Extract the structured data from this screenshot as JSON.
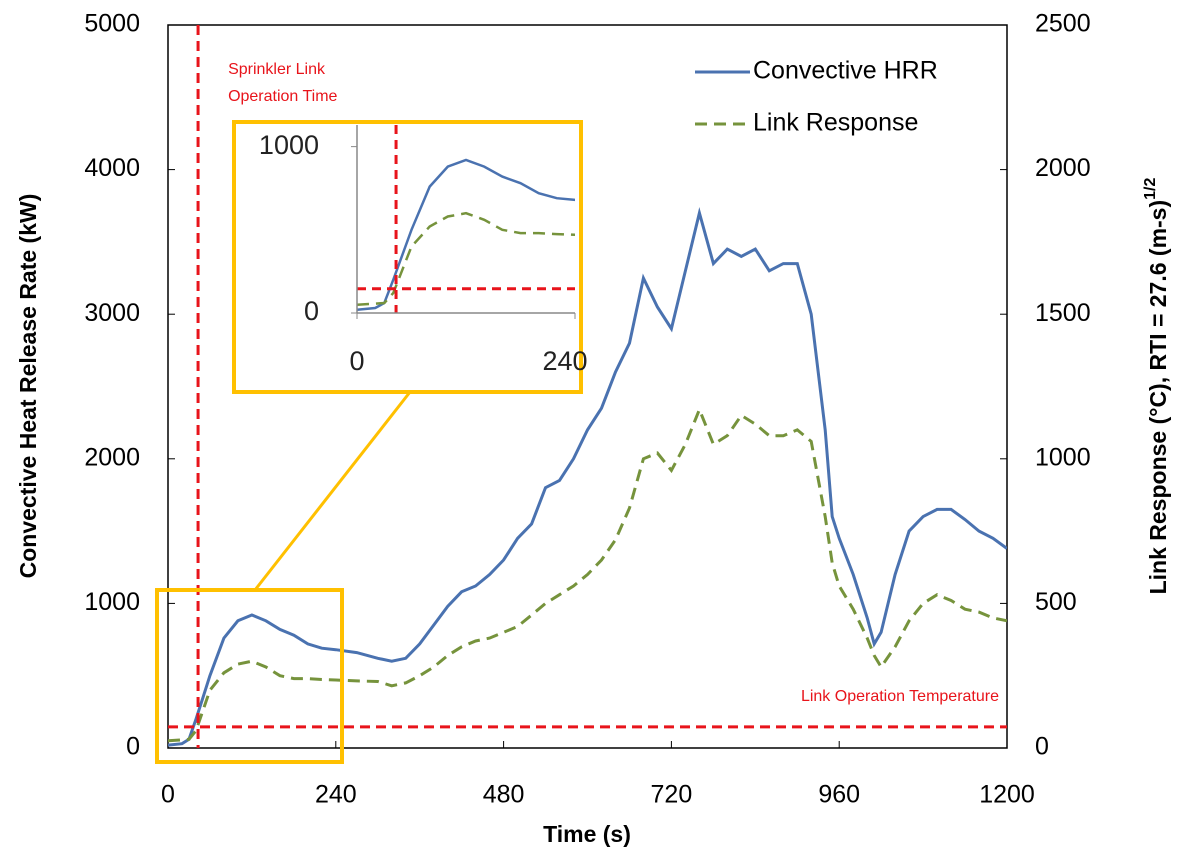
{
  "chart_data": {
    "type": "line",
    "xlabel": "Time (s)",
    "ylabel": "Convective Heat Release Rate (kW)",
    "y2label": "Link Response (°C), RTI =  27.6 (m-s)",
    "y2label_superscript": "1/2",
    "xlim": [
      0,
      1200
    ],
    "xticks": [
      0,
      240,
      480,
      720,
      960,
      1200
    ],
    "ylim": [
      0,
      5000
    ],
    "yticks": [
      0,
      1000,
      2000,
      3000,
      4000,
      5000
    ],
    "y2lim": [
      0,
      2500
    ],
    "y2ticks": [
      0,
      500,
      1000,
      1500,
      2000,
      2500
    ],
    "legend": "top-right",
    "x": [
      0,
      20,
      30,
      40,
      50,
      60,
      80,
      100,
      120,
      140,
      160,
      180,
      200,
      220,
      240,
      270,
      300,
      320,
      340,
      360,
      380,
      400,
      420,
      440,
      460,
      480,
      500,
      520,
      540,
      560,
      580,
      600,
      620,
      640,
      660,
      680,
      700,
      720,
      740,
      760,
      780,
      800,
      820,
      840,
      860,
      880,
      900,
      920,
      940,
      950,
      960,
      980,
      1000,
      1010,
      1020,
      1040,
      1060,
      1080,
      1100,
      1120,
      1140,
      1160,
      1180,
      1200
    ],
    "series": [
      {
        "name": "Convective HRR",
        "color": "#4a72b0",
        "dash": "solid",
        "values": [
          20,
          30,
          60,
          200,
          350,
          500,
          760,
          880,
          920,
          880,
          820,
          780,
          720,
          690,
          680,
          660,
          620,
          600,
          620,
          720,
          850,
          980,
          1080,
          1120,
          1200,
          1300,
          1450,
          1550,
          1800,
          1850,
          2000,
          2200,
          2350,
          2600,
          2800,
          3250,
          3050,
          2900,
          3300,
          3700,
          3350,
          3450,
          3400,
          3450,
          3300,
          3350,
          3350,
          3000,
          2200,
          1600,
          1450,
          1200,
          900,
          720,
          800,
          1200,
          1500,
          1600,
          1650,
          1650,
          1580,
          1500,
          1450,
          1380
        ]
      },
      {
        "name": "Link Response",
        "color": "#76933c",
        "dash": "dashed",
        "axis": "y2",
        "values": [
          25,
          28,
          30,
          60,
          130,
          200,
          260,
          290,
          300,
          280,
          250,
          240,
          240,
          237,
          235,
          232,
          230,
          215,
          225,
          250,
          280,
          320,
          350,
          370,
          380,
          400,
          420,
          460,
          500,
          530,
          560,
          600,
          650,
          720,
          830,
          1000,
          1020,
          960,
          1050,
          1170,
          1050,
          1080,
          1150,
          1120,
          1080,
          1080,
          1100,
          1060,
          800,
          640,
          560,
          480,
          380,
          320,
          280,
          350,
          440,
          500,
          530,
          510,
          480,
          470,
          450,
          440
        ]
      }
    ],
    "annotations": [
      {
        "label_lines": [
          "Sprinkler Link",
          "Operation Time"
        ],
        "x": 43,
        "color": "#e8141b"
      },
      {
        "label": "Link Operation Temperature",
        "y2": 73,
        "color": "#e8141b"
      }
    ],
    "inset": {
      "xlim": [
        0,
        240
      ],
      "xticks": [
        0,
        240
      ],
      "ylim": [
        0,
        1130
      ],
      "yticks": [
        0,
        1000
      ],
      "color": "#ffc000"
    }
  }
}
